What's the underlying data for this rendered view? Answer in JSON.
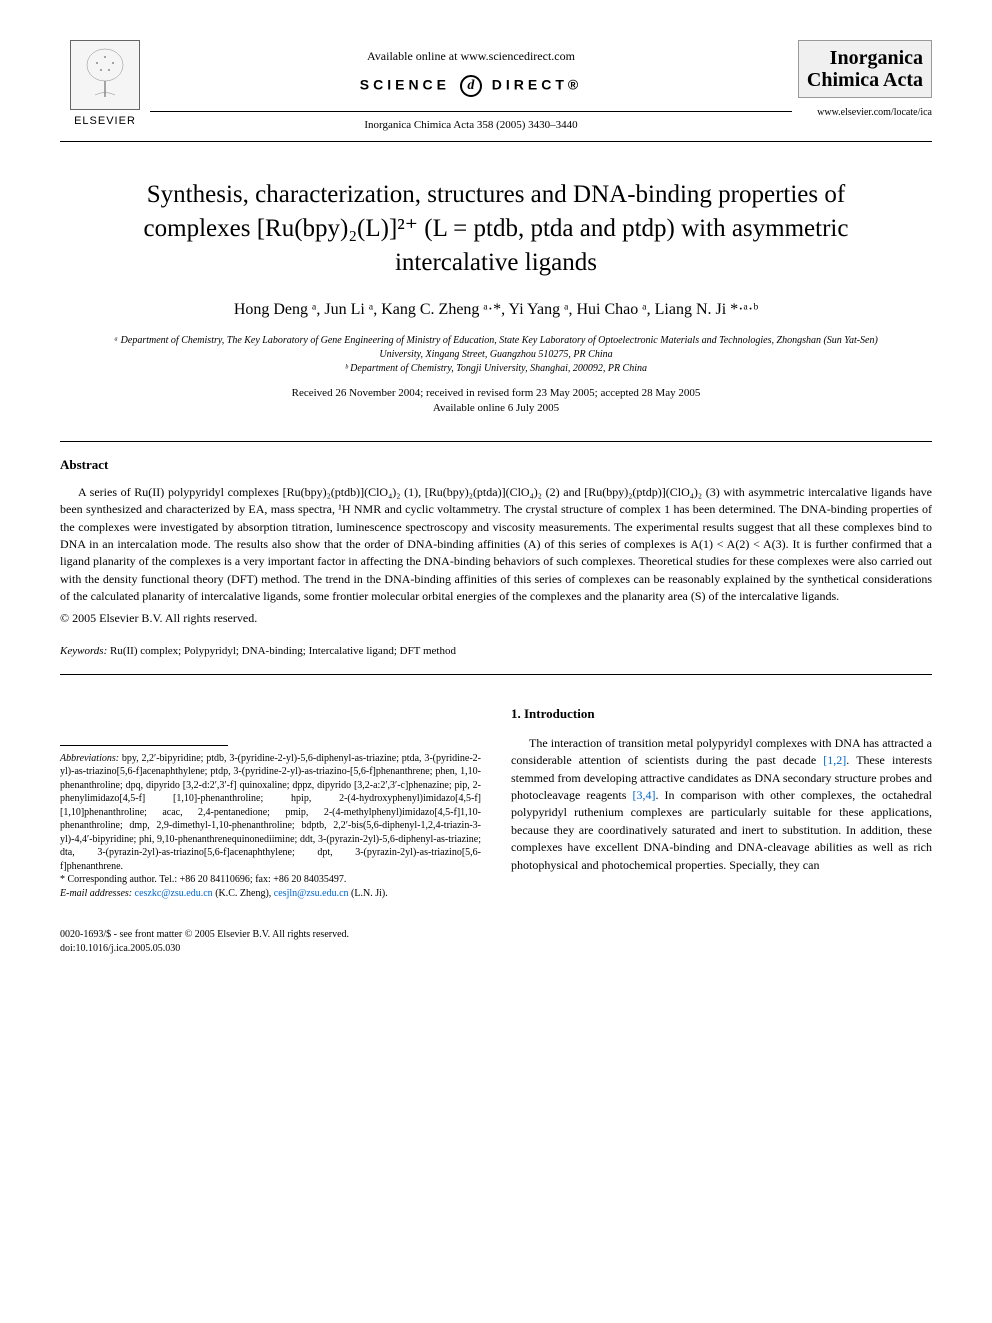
{
  "header": {
    "publisher_name": "ELSEVIER",
    "available_online": "Available online at www.sciencedirect.com",
    "science_direct_left": "SCIENCE",
    "science_direct_d": "d",
    "science_direct_right": "DIRECT®",
    "journal_ref": "Inorganica Chimica Acta 358 (2005) 3430–3440",
    "journal_name_line1": "Inorganica",
    "journal_name_line2": "Chimica Acta",
    "locate_url": "www.elsevier.com/locate/ica"
  },
  "title": "Synthesis, characterization, structures and DNA-binding properties of complexes [Ru(bpy)₂(L)]²⁺ (L = ptdb, ptda and ptdp) with asymmetric intercalative ligands",
  "authors": "Hong Deng ᵃ, Jun Li ᵃ, Kang C. Zheng ᵃ·*, Yi Yang ᵃ, Hui Chao ᵃ, Liang N. Ji *·ᵃ·ᵇ",
  "affiliations": {
    "a": "ᵃ Department of Chemistry, The Key Laboratory of Gene Engineering of Ministry of Education, State Key Laboratory of Optoelectronic Materials and Technologies, Zhongshan (Sun Yat-Sen) University, Xingang Street, Guangzhou 510275, PR China",
    "b": "ᵇ Department of Chemistry, Tongji University, Shanghai, 200092, PR China"
  },
  "dates": {
    "received": "Received 26 November 2004; received in revised form 23 May 2005; accepted 28 May 2005",
    "online": "Available online 6 July 2005"
  },
  "abstract": {
    "heading": "Abstract",
    "text": "A series of Ru(II) polypyridyl complexes [Ru(bpy)₂(ptdb)](ClO₄)₂ (1), [Ru(bpy)₂(ptda)](ClO₄)₂ (2) and [Ru(bpy)₂(ptdp)](ClO₄)₂ (3) with asymmetric intercalative ligands have been synthesized and characterized by EA, mass spectra, ¹H NMR and cyclic voltammetry. The crystal structure of complex 1 has been determined. The DNA-binding properties of the complexes were investigated by absorption titration, luminescence spectroscopy and viscosity measurements. The experimental results suggest that all these complexes bind to DNA in an intercalation mode. The results also show that the order of DNA-binding affinities (A) of this series of complexes is A(1) < A(2) < A(3). It is further confirmed that a ligand planarity of the complexes is a very important factor in affecting the DNA-binding behaviors of such complexes. Theoretical studies for these complexes were also carried out with the density functional theory (DFT) method. The trend in the DNA-binding affinities of this series of complexes can be reasonably explained by the synthetical considerations of the calculated planarity of intercalative ligands, some frontier molecular orbital energies of the complexes and the planarity area (S) of the intercalative ligands.",
    "copyright": "© 2005 Elsevier B.V. All rights reserved."
  },
  "keywords": {
    "label": "Keywords:",
    "text": "Ru(II) complex; Polypyridyl; DNA-binding; Intercalative ligand; DFT method"
  },
  "footnotes": {
    "abbrev_label": "Abbreviations:",
    "abbrev_text": "bpy, 2,2′-bipyridine; ptdb, 3-(pyridine-2-yl)-5,6-diphenyl-as-triazine; ptda, 3-(pyridine-2-yl)-as-triazino[5,6-f]acenaphthylene; ptdp, 3-(pyridine-2-yl)-as-triazino-[5,6-f]phenanthrene; phen, 1,10-phenanthroline; dpq, dipyrido [3,2-d:2′,3′-f] quinoxaline; dppz, dipyrido [3,2-a:2′,3′-c]phenazine; pip, 2-phenylimidazo[4,5-f] [1,10]-phenanthroline; hpip, 2-(4-hydroxyphenyl)imidazo[4,5-f][1,10]phenanthroline; acac, 2,4-pentanedione; pmip, 2-(4-methylphenyl)imidazo[4,5-f]1,10-phenanthroline; dmp, 2,9-dimethyl-1,10-phenanthroline; bdptb, 2,2′-bis(5,6-diphenyl-1,2,4-triazin-3-yl)-4,4′-bipyridine; phi, 9,10-phenanthrenequinonediimine; ddt, 3-(pyrazin-2yl)-5,6-diphenyl-as-triazine; dta, 3-(pyrazin-2yl)-as-triazino[5,6-f]acenaphthylene; dpt, 3-(pyrazin-2yl)-as-triazino[5,6-f]phenanthrene.",
    "corresponding": "* Corresponding author. Tel.: +86 20 84110696; fax: +86 20 84035497.",
    "email_label": "E-mail addresses:",
    "email1": "ceszkc@zsu.edu.cn",
    "email1_name": "(K.C. Zheng),",
    "email2": "cesjln@zsu.edu.cn",
    "email2_name": "(L.N. Ji)."
  },
  "introduction": {
    "heading": "1. Introduction",
    "text": "The interaction of transition metal polypyridyl complexes with DNA has attracted a considerable attention of scientists during the past decade [1,2]. These interests stemmed from developing attractive candidates as DNA secondary structure probes and photocleavage reagents [3,4]. In comparison with other complexes, the octahedral polypyridyl ruthenium complexes are particularly suitable for these applications, because they are coordinatively saturated and inert to substitution. In addition, these complexes have excellent DNA-binding and DNA-cleavage abilities as well as rich photophysical and photochemical properties. Specially, they can"
  },
  "footer": {
    "issn": "0020-1693/$ - see front matter © 2005 Elsevier B.V. All rights reserved.",
    "doi": "doi:10.1016/j.ica.2005.05.030"
  }
}
